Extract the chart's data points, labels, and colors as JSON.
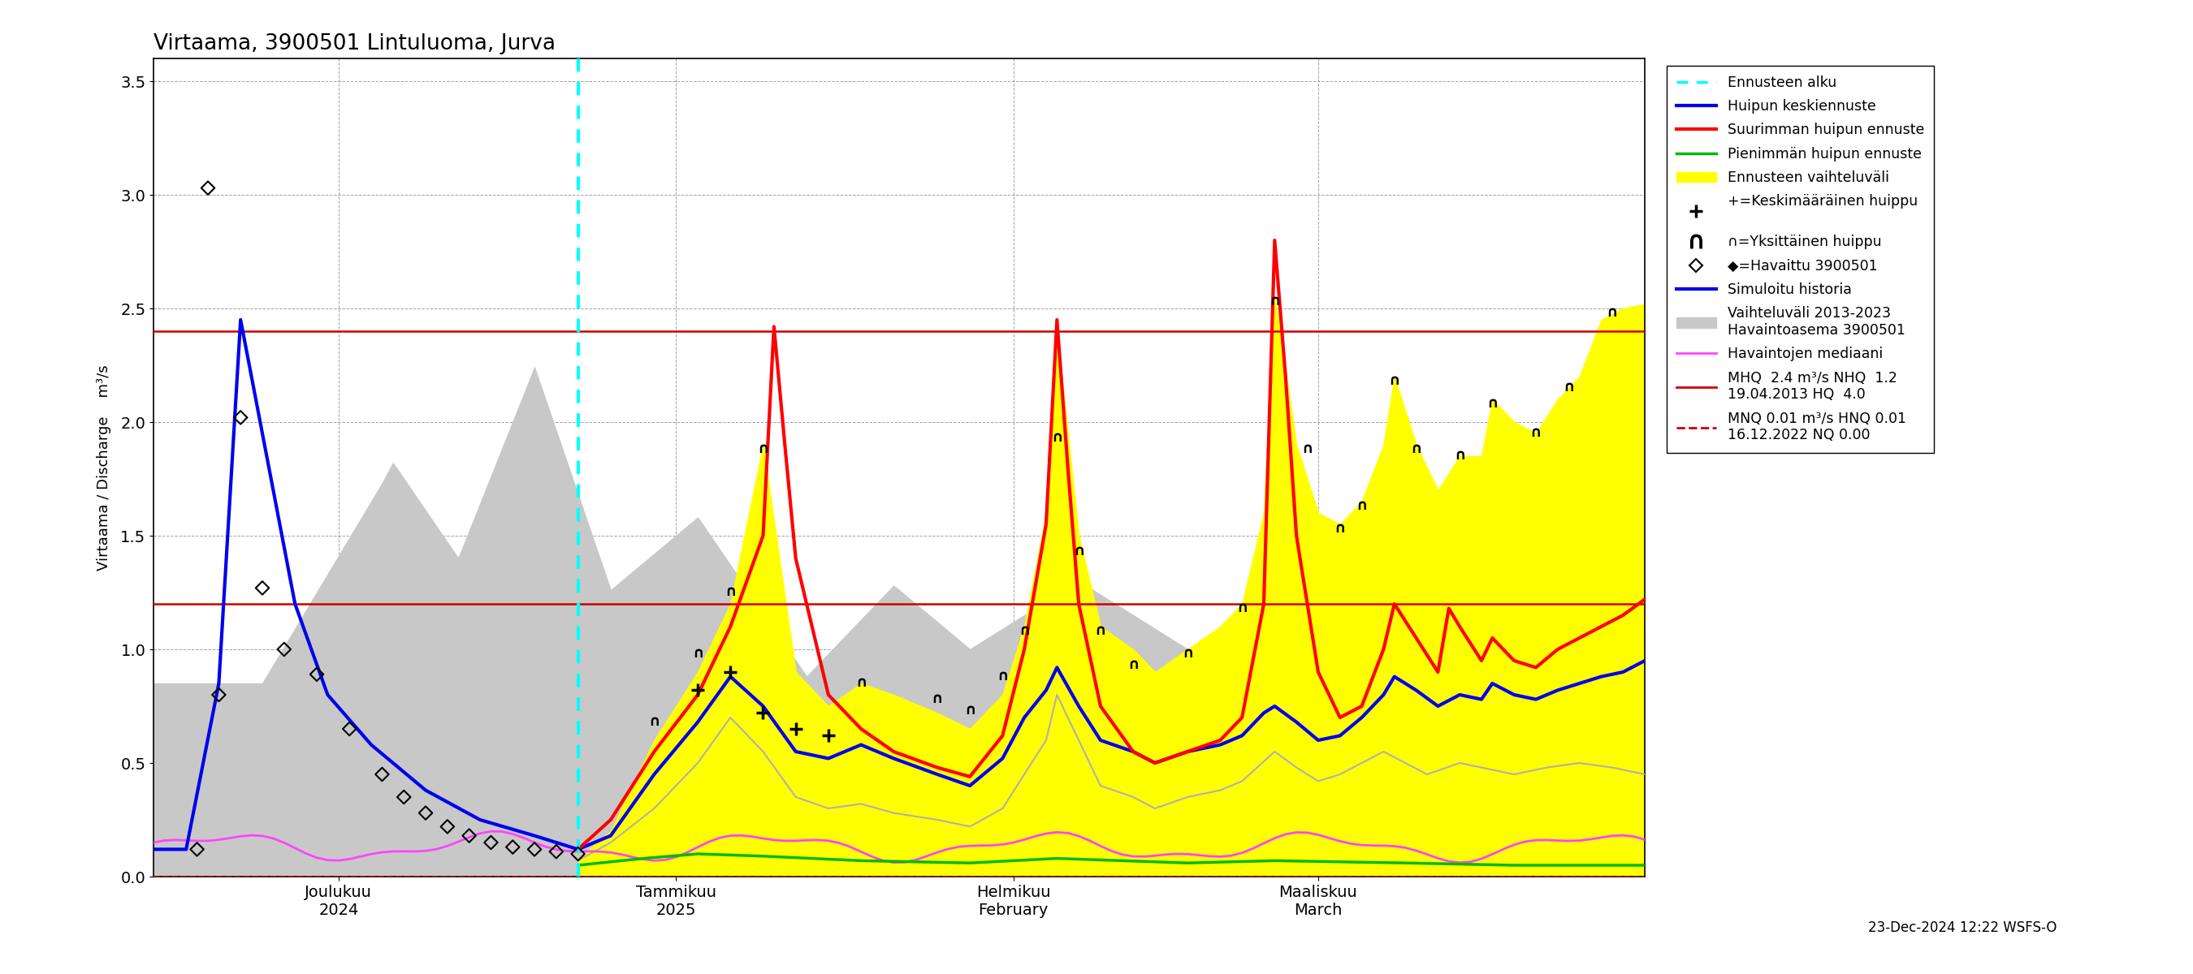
{
  "title": "Virtaama, 3900501 Lintuluoma, Jurva",
  "ylim": [
    0.0,
    3.6
  ],
  "yticks": [
    0.0,
    0.5,
    1.0,
    1.5,
    2.0,
    2.5,
    3.0,
    3.5
  ],
  "hline_MHQ": 2.4,
  "hline_NHQ": 1.2,
  "hline_MNQ": 0.0,
  "timestamp": "23-Dec-2024 12:22 WSFS-O",
  "colors": {
    "blue": "#0000EE",
    "red": "#FF0000",
    "green": "#00BB00",
    "yellow": "#FFFF00",
    "gray_band": "#C8C8C8",
    "silver_line": "#B0B0B0",
    "cyan": "#00FFFF",
    "magenta": "#FF44FF",
    "dark_red": "#CC0000",
    "black": "#000000"
  },
  "xtick_labels": [
    "Joulukuu\n2024",
    "Tammikuu\n2025",
    "Helmikuu\nFebruary",
    "Maaliskuu\nMarch"
  ],
  "ylabel": "Virtaama / Discharge    m³/s"
}
